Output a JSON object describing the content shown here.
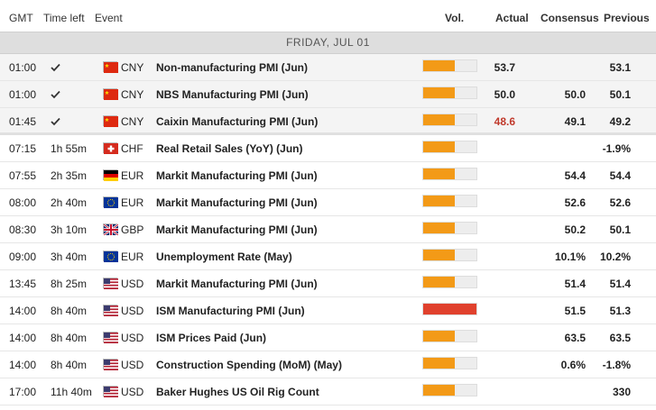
{
  "columns": {
    "gmt": "GMT",
    "time_left": "Time left",
    "event": "Event",
    "vol": "Vol.",
    "actual": "Actual",
    "consensus": "Consensus",
    "previous": "Previous"
  },
  "day_label": "FRIDAY, JUL 01",
  "colors": {
    "vol_medium": "#f39a17",
    "vol_high": "#e0412d",
    "actual_below": "#c0392b"
  },
  "rows": [
    {
      "gmt": "01:00",
      "time_left": "",
      "done": true,
      "flag": "cn-flag-icon",
      "currency": "CNY",
      "event": "Non-manufacturing PMI (Jun)",
      "volatility": 0.6,
      "level": "medium",
      "actual": "53.7",
      "actual_color": "",
      "consensus": "",
      "previous": "53.1"
    },
    {
      "gmt": "01:00",
      "time_left": "",
      "done": true,
      "flag": "cn-flag-icon",
      "currency": "CNY",
      "event": "NBS Manufacturing PMI (Jun)",
      "volatility": 0.6,
      "level": "medium",
      "actual": "50.0",
      "actual_color": "",
      "consensus": "50.0",
      "previous": "50.1"
    },
    {
      "gmt": "01:45",
      "time_left": "",
      "done": true,
      "flag": "cn-flag-icon",
      "currency": "CNY",
      "event": "Caixin Manufacturing PMI (Jun)",
      "volatility": 0.6,
      "level": "medium",
      "actual": "48.6",
      "actual_color": "#c0392b",
      "consensus": "49.1",
      "previous": "49.2"
    },
    {
      "gmt": "07:15",
      "time_left": "1h 55m",
      "done": false,
      "flag": "ch-flag-icon",
      "currency": "CHF",
      "event": "Real Retail Sales (YoY) (Jun)",
      "volatility": 0.6,
      "level": "medium",
      "actual": "",
      "actual_color": "",
      "consensus": "",
      "previous": "-1.9%"
    },
    {
      "gmt": "07:55",
      "time_left": "2h 35m",
      "done": false,
      "flag": "de-flag-icon",
      "currency": "EUR",
      "event": "Markit Manufacturing PMI (Jun)",
      "volatility": 0.6,
      "level": "medium",
      "actual": "",
      "actual_color": "",
      "consensus": "54.4",
      "previous": "54.4"
    },
    {
      "gmt": "08:00",
      "time_left": "2h 40m",
      "done": false,
      "flag": "eu-flag-icon",
      "currency": "EUR",
      "event": "Markit Manufacturing PMI (Jun)",
      "volatility": 0.6,
      "level": "medium",
      "actual": "",
      "actual_color": "",
      "consensus": "52.6",
      "previous": "52.6"
    },
    {
      "gmt": "08:30",
      "time_left": "3h 10m",
      "done": false,
      "flag": "gb-flag-icon",
      "currency": "GBP",
      "event": "Markit Manufacturing PMI (Jun)",
      "volatility": 0.6,
      "level": "medium",
      "actual": "",
      "actual_color": "",
      "consensus": "50.2",
      "previous": "50.1"
    },
    {
      "gmt": "09:00",
      "time_left": "3h 40m",
      "done": false,
      "flag": "eu-flag-icon",
      "currency": "EUR",
      "event": "Unemployment Rate (May)",
      "volatility": 0.6,
      "level": "medium",
      "actual": "",
      "actual_color": "",
      "consensus": "10.1%",
      "previous": "10.2%"
    },
    {
      "gmt": "13:45",
      "time_left": "8h 25m",
      "done": false,
      "flag": "us-flag-icon",
      "currency": "USD",
      "event": "Markit Manufacturing PMI (Jun)",
      "volatility": 0.6,
      "level": "medium",
      "actual": "",
      "actual_color": "",
      "consensus": "51.4",
      "previous": "51.4"
    },
    {
      "gmt": "14:00",
      "time_left": "8h 40m",
      "done": false,
      "flag": "us-flag-icon",
      "currency": "USD",
      "event": "ISM Manufacturing PMI (Jun)",
      "volatility": 1.0,
      "level": "high",
      "actual": "",
      "actual_color": "",
      "consensus": "51.5",
      "previous": "51.3"
    },
    {
      "gmt": "14:00",
      "time_left": "8h 40m",
      "done": false,
      "flag": "us-flag-icon",
      "currency": "USD",
      "event": "ISM Prices Paid (Jun)",
      "volatility": 0.6,
      "level": "medium",
      "actual": "",
      "actual_color": "",
      "consensus": "63.5",
      "previous": "63.5"
    },
    {
      "gmt": "14:00",
      "time_left": "8h 40m",
      "done": false,
      "flag": "us-flag-icon",
      "currency": "USD",
      "event": "Construction Spending (MoM) (May)",
      "volatility": 0.6,
      "level": "medium",
      "actual": "",
      "actual_color": "",
      "consensus": "0.6%",
      "previous": "-1.8%"
    },
    {
      "gmt": "17:00",
      "time_left": "11h 40m",
      "done": false,
      "flag": "us-flag-icon",
      "currency": "USD",
      "event": "Baker Hughes US Oil Rig Count",
      "volatility": 0.6,
      "level": "medium",
      "actual": "",
      "actual_color": "",
      "consensus": "",
      "previous": "330"
    }
  ]
}
